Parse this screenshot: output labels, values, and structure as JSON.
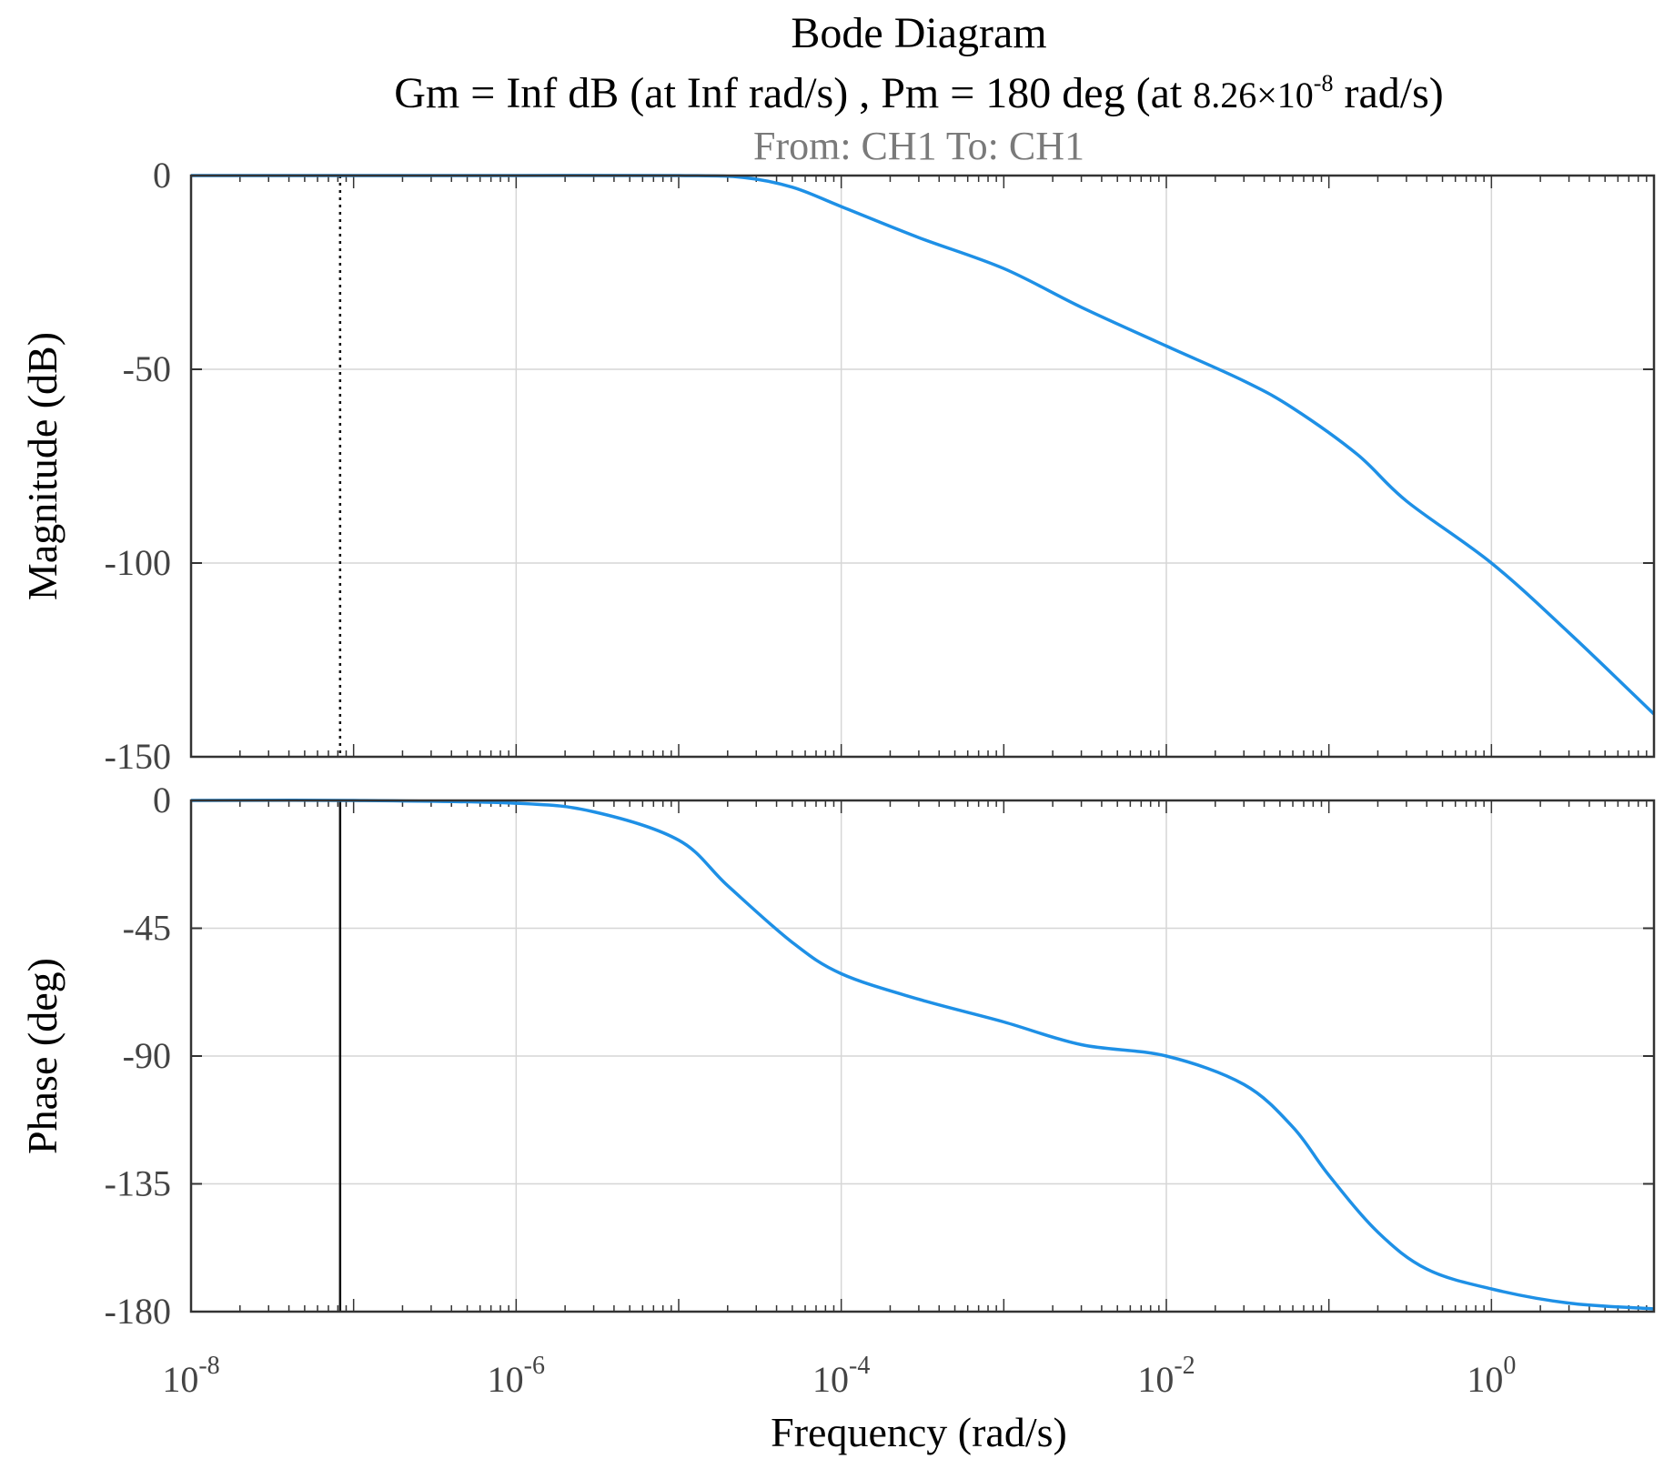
{
  "chart_data": [
    {
      "type": "line",
      "panel": "magnitude",
      "title": "Bode Diagram",
      "subtitle_gm": "Gm = Inf dB (at Inf rad/s) ,  Pm = 180 deg (at ",
      "subtitle_pm_mant": "8.26×10",
      "subtitle_pm_exp": "-8",
      "subtitle_pm_unit": " rad/s)",
      "io_label": "From: CH1  To: CH1",
      "ylabel": "Magnitude (dB)",
      "xscale": "log",
      "xlim": [
        1e-08,
        10
      ],
      "ylim": [
        -150,
        0
      ],
      "yticks": [
        "0",
        "-50",
        "-100",
        "-150"
      ],
      "ytick_values": [
        0,
        -50,
        -100,
        -150
      ],
      "grid": true,
      "marker_line": {
        "x": 8.26e-08,
        "style": "dotted"
      },
      "series": [
        {
          "x": [
            1e-08,
            1e-07,
            1e-06,
            1e-05,
            2.5e-05,
            5e-05,
            0.0001,
            0.0003,
            0.001,
            0.003,
            0.01,
            0.03,
            0.06,
            0.15,
            0.3,
            1,
            3,
            10
          ],
          "y": [
            0,
            0,
            0,
            0,
            -0.5,
            -3,
            -8,
            -16,
            -24,
            -34,
            -44,
            -53,
            -60,
            -72,
            -84,
            -100,
            -118,
            -139
          ]
        }
      ]
    },
    {
      "type": "line",
      "panel": "phase",
      "ylabel": "Phase (deg)",
      "xlabel": "Frequency  (rad/s)",
      "xscale": "log",
      "xlim": [
        1e-08,
        10
      ],
      "ylim": [
        -180,
        0
      ],
      "yticks": [
        "0",
        "-45",
        "-90",
        "-135",
        "-180"
      ],
      "ytick_values": [
        0,
        -45,
        -90,
        -135,
        -180
      ],
      "xticks": [
        {
          "base": "10",
          "exp": "-8",
          "value": 1e-08
        },
        {
          "base": "10",
          "exp": "-6",
          "value": 1e-06
        },
        {
          "base": "10",
          "exp": "-4",
          "value": 0.0001
        },
        {
          "base": "10",
          "exp": "-2",
          "value": 0.01
        },
        {
          "base": "10",
          "exp": "0",
          "value": 1
        }
      ],
      "grid": true,
      "marker_line": {
        "x": 8.26e-08,
        "style": "solid"
      },
      "series": [
        {
          "x": [
            1e-08,
            1e-07,
            1e-06,
            3e-06,
            1e-05,
            2e-05,
            5e-05,
            0.0001,
            0.0003,
            0.001,
            0.003,
            0.01,
            0.03,
            0.06,
            0.1,
            0.2,
            0.4,
            1,
            3,
            10
          ],
          "y": [
            0,
            0,
            -1,
            -4,
            -14,
            -30,
            -50,
            -61,
            -70,
            -78,
            -86,
            -90,
            -100,
            -115,
            -132,
            -152,
            -165,
            -172,
            -177,
            -179
          ]
        }
      ]
    }
  ]
}
